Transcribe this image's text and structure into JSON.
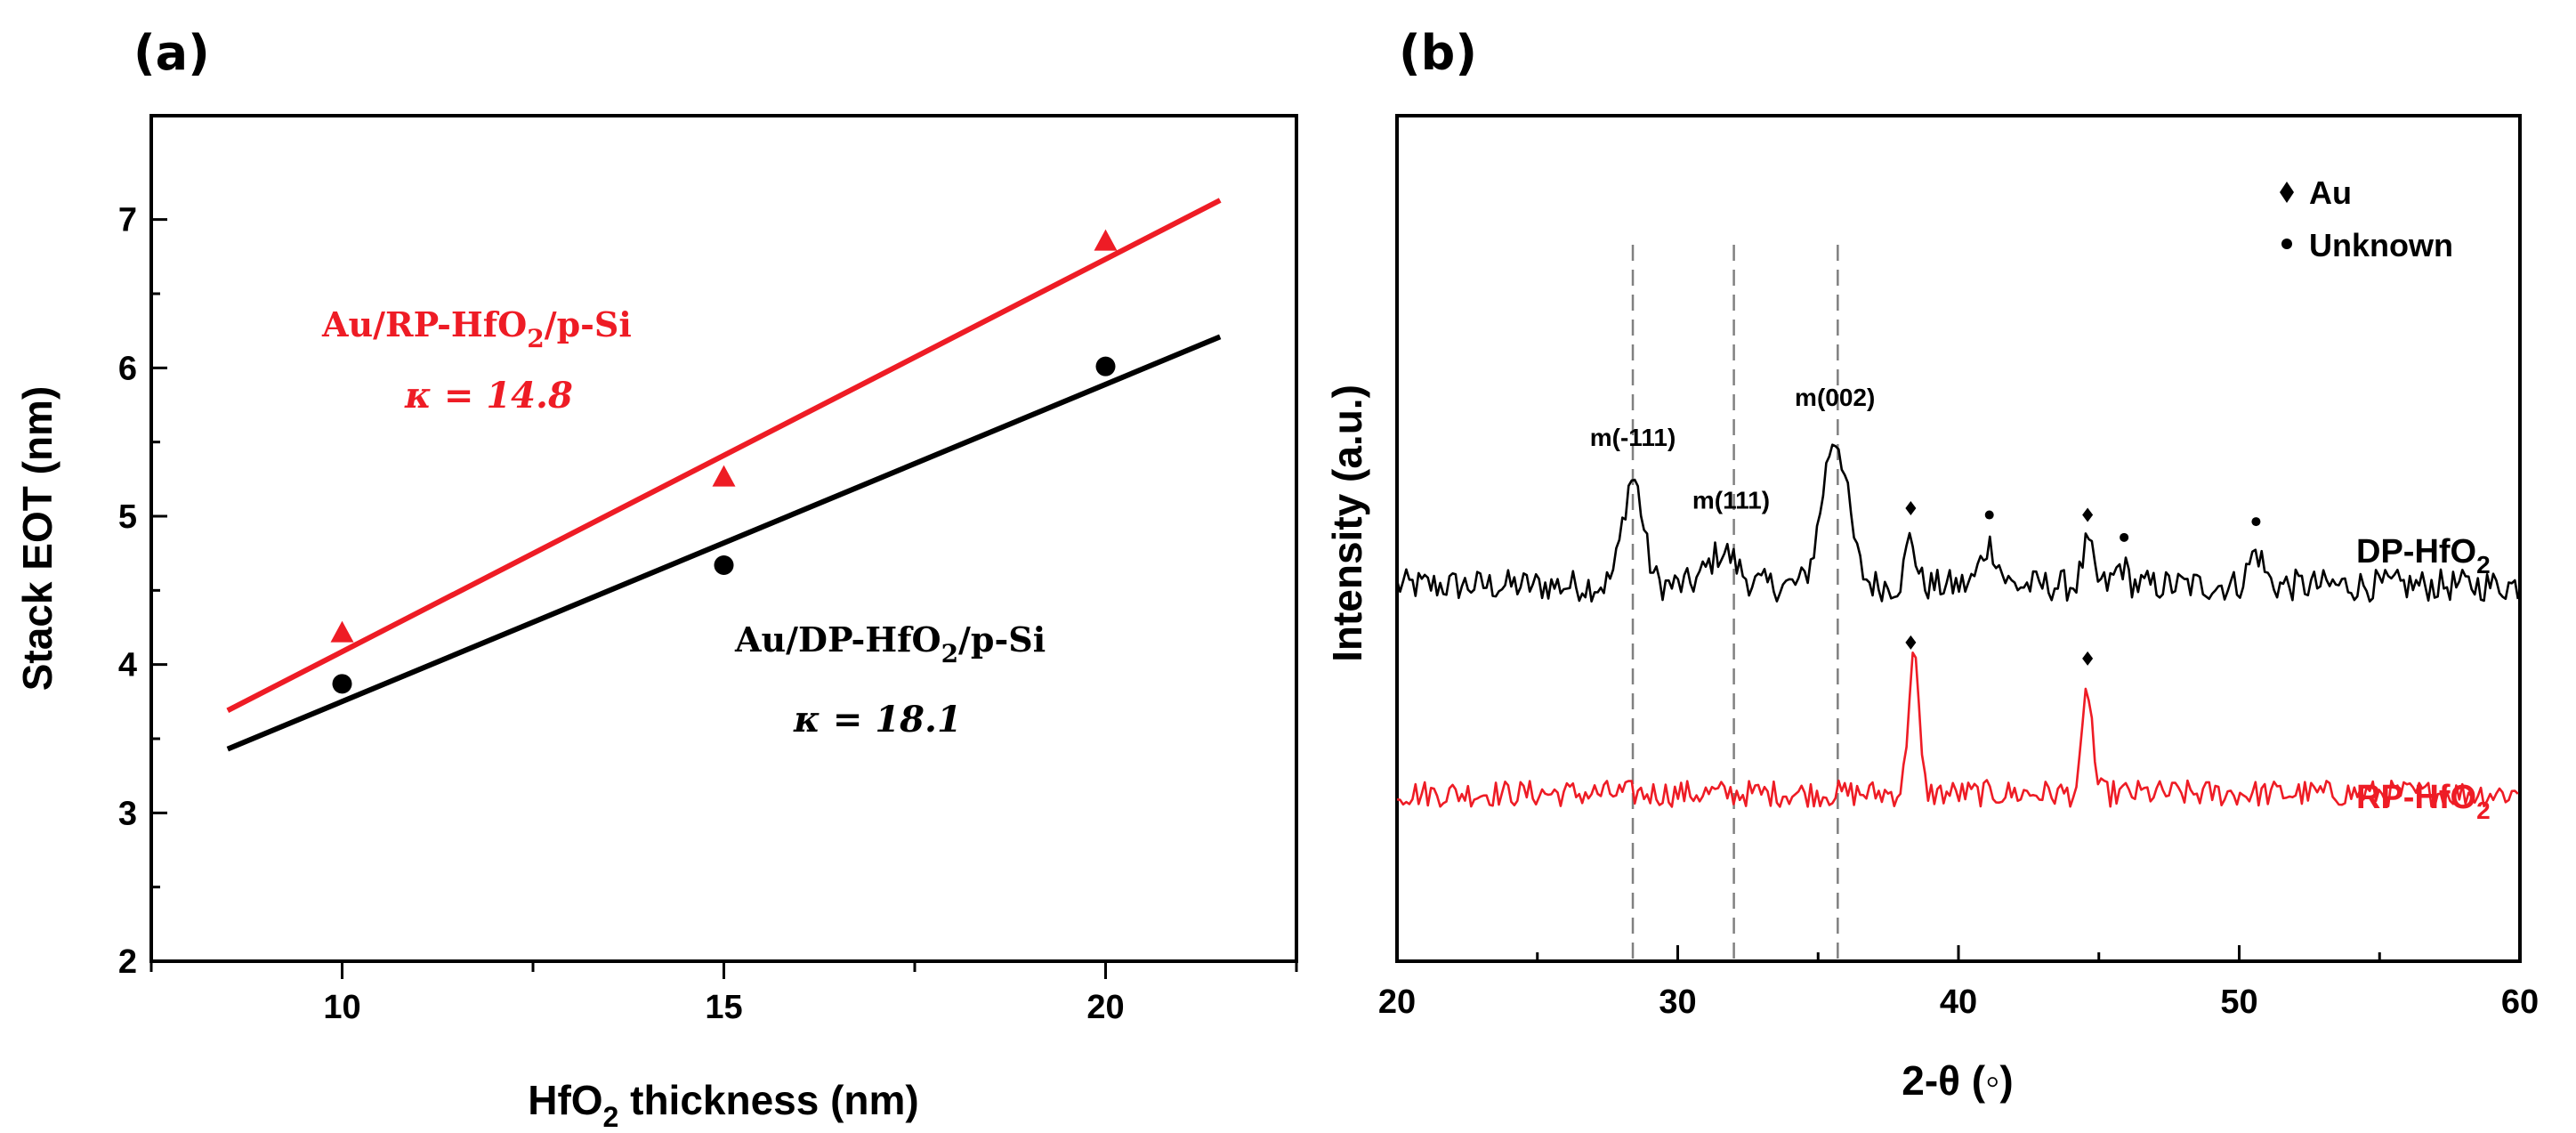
{
  "chart_data": [
    {
      "panel": "(a)",
      "type": "scatter",
      "xlabel_prefix": "HfO",
      "xlabel_sub": "2",
      "xlabel_suffix": " thickness (nm)",
      "ylabel": "Stack EOT (nm)",
      "xlim": [
        7.5,
        22.5
      ],
      "ylim": [
        2,
        7.7
      ],
      "xticks": [
        10,
        15,
        20
      ],
      "yticks": [
        2,
        3,
        4,
        5,
        6,
        7
      ],
      "series": [
        {
          "name_parts": [
            "Au/RP-HfO",
            "2",
            "/p-Si"
          ],
          "kappa": "κ = 14.8",
          "color": "#ee1c25",
          "marker": "triangle",
          "x": [
            10,
            15,
            20
          ],
          "y": [
            4.21,
            5.26,
            6.85
          ],
          "fit": {
            "x": [
              8.5,
              21.5
            ],
            "y": [
              3.69,
              7.13
            ]
          }
        },
        {
          "name_parts": [
            "Au/DP-HfO",
            "2",
            "/p-Si"
          ],
          "kappa": "κ = 18.1",
          "color": "#000000",
          "marker": "circle",
          "x": [
            10,
            15,
            20
          ],
          "y": [
            3.87,
            4.67,
            6.01
          ],
          "fit": {
            "x": [
              8.5,
              21.5
            ],
            "y": [
              3.43,
              6.21
            ]
          }
        }
      ]
    },
    {
      "panel": "(b)",
      "type": "line",
      "xlabel": "2-θ (◦)",
      "ylabel": "Intensity (a.u.)",
      "xlim": [
        20,
        60
      ],
      "xticks": [
        20,
        30,
        40,
        50,
        60
      ],
      "reference_lines_2theta": [
        28.4,
        32.0,
        35.7
      ],
      "peak_labels": [
        {
          "text": "m(-111)",
          "x": 28.4
        },
        {
          "text": "m(111)",
          "x": 31.9
        },
        {
          "text": "m(002)",
          "x": 35.6
        }
      ],
      "legend": [
        {
          "marker": "diamond",
          "label": "Au"
        },
        {
          "marker": "circle",
          "label": "Unknown"
        }
      ],
      "series": [
        {
          "name_parts": [
            "DP-HfO",
            "2"
          ],
          "color": "#000000",
          "baseline": 4.3,
          "peaks": [
            {
              "x": 28.4,
              "h": 0.8,
              "w": 0.35
            },
            {
              "x": 31.6,
              "h": 0.25,
              "w": 0.5
            },
            {
              "x": 35.6,
              "h": 1.1,
              "w": 0.45
            },
            {
              "x": 38.3,
              "h": 0.35,
              "w": 0.18
            },
            {
              "x": 41.1,
              "h": 0.3,
              "w": 0.3
            },
            {
              "x": 44.6,
              "h": 0.3,
              "w": 0.18
            },
            {
              "x": 45.8,
              "h": 0.15,
              "w": 0.2
            },
            {
              "x": 50.6,
              "h": 0.25,
              "w": 0.25
            }
          ],
          "markers": [
            {
              "type": "diamond",
              "x": 38.3
            },
            {
              "type": "circle",
              "x": 41.1
            },
            {
              "type": "diamond",
              "x": 44.6
            },
            {
              "type": "circle",
              "x": 45.9
            },
            {
              "type": "circle",
              "x": 50.6
            }
          ]
        },
        {
          "name_parts": [
            "RP-HfO",
            "2"
          ],
          "color": "#ee1c25",
          "baseline": 2.75,
          "peaks": [
            {
              "x": 38.4,
              "h": 1.05,
              "w": 0.18
            },
            {
              "x": 44.6,
              "h": 0.78,
              "w": 0.17
            }
          ],
          "markers": [
            {
              "type": "diamond",
              "x": 38.3
            },
            {
              "type": "diamond",
              "x": 44.6
            }
          ]
        }
      ]
    }
  ]
}
